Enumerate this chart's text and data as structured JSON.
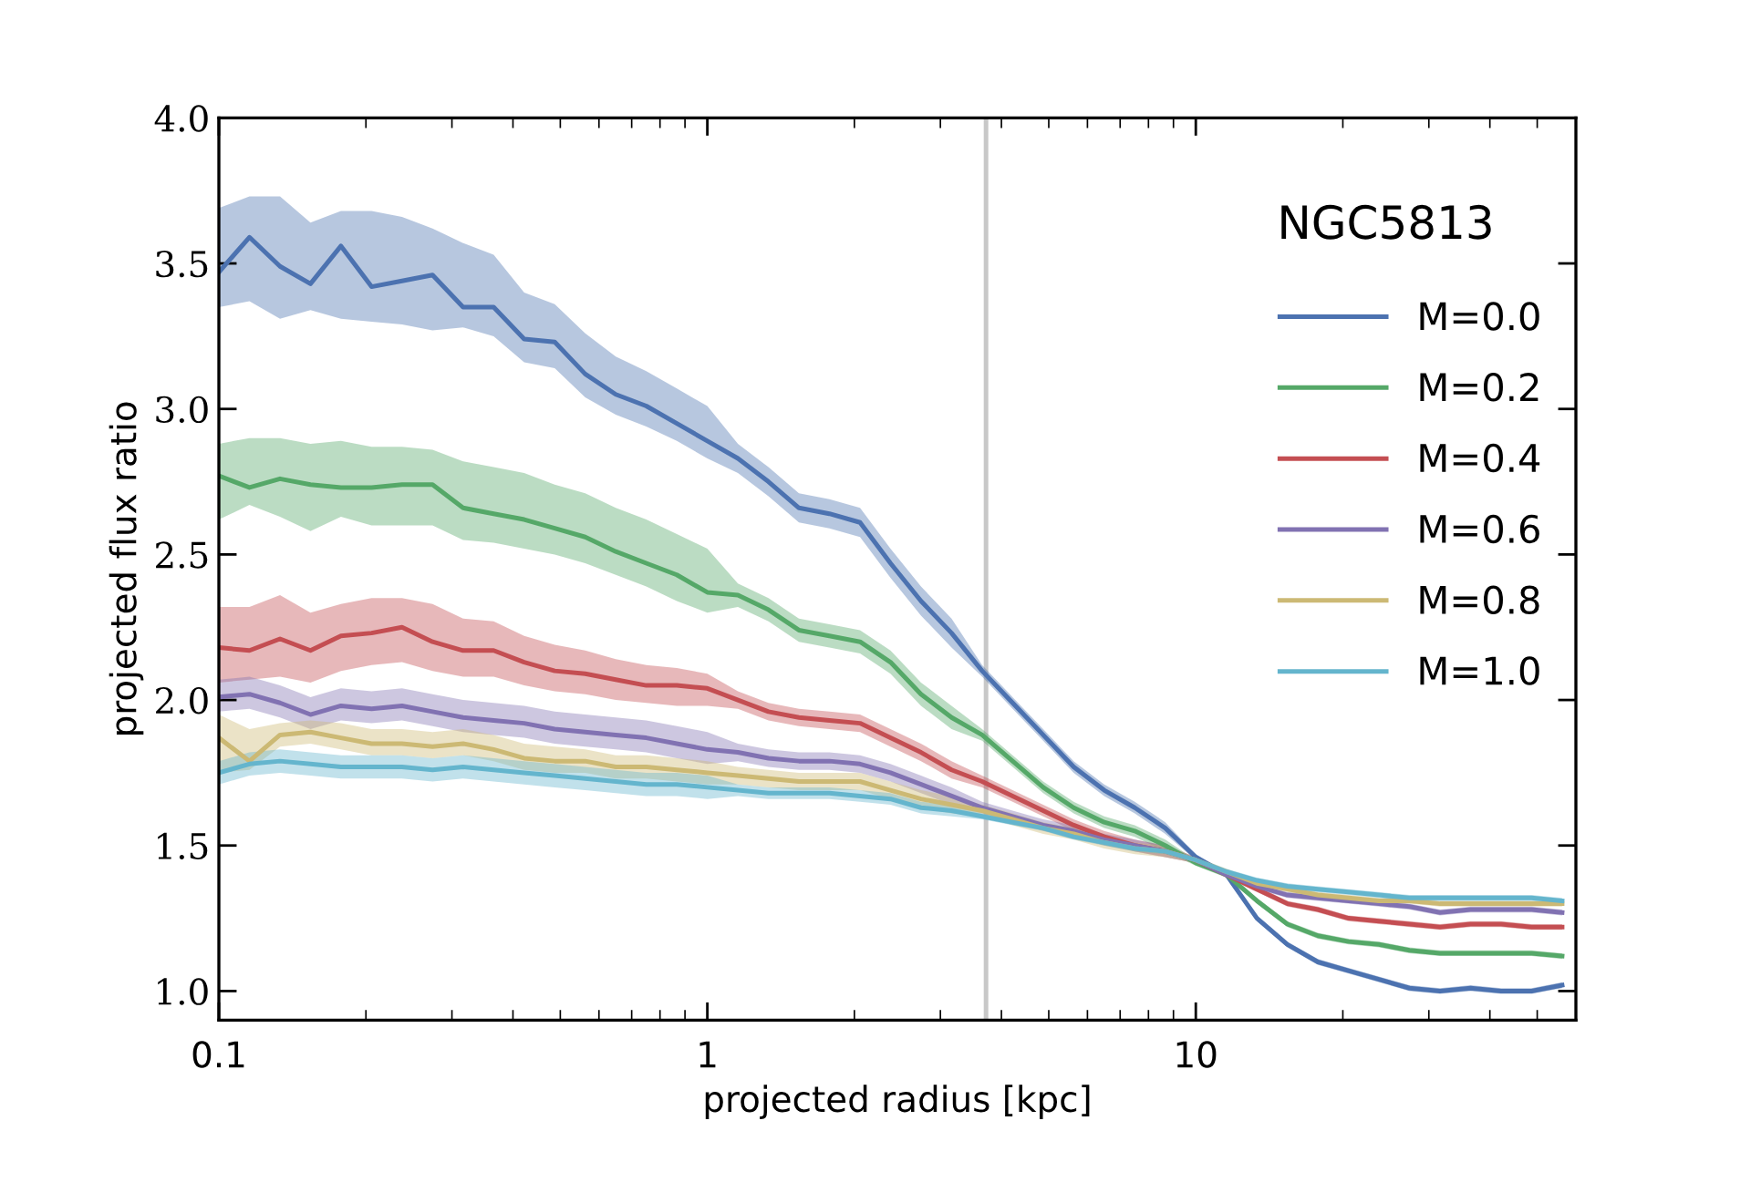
{
  "chart_data": {
    "type": "line",
    "xlabel": "projected radius [kpc]",
    "ylabel": "projected flux ratio",
    "annotations": [
      "NGC5813"
    ],
    "log": "x",
    "grid": false,
    "legend": "right",
    "line_style": "solid",
    "marker": "none",
    "xlim": [
      0.1,
      60
    ],
    "xticks": [
      0.1,
      1,
      10
    ],
    "ylim": [
      0.9,
      4.0
    ],
    "yticks": [
      {
        "value": 1.0,
        "label": "1.0"
      },
      {
        "value": 1.5,
        "label": "1.5"
      },
      {
        "value": 2.0,
        "label": "2.0"
      },
      {
        "value": 2.5,
        "label": "2.5"
      },
      {
        "value": 3.0,
        "label": "3.0"
      },
      {
        "value": 3.5,
        "label": "3.5"
      },
      {
        "value": 4.0,
        "label": "4.0"
      }
    ],
    "ref_lines": [
      {
        "axis": "x",
        "value": 3.72,
        "label": null,
        "color": "#c8c8c8"
      }
    ],
    "x": [
      0.1,
      0.1155,
      0.1334,
      0.154,
      0.1778,
      0.2054,
      0.2371,
      0.2738,
      0.3162,
      0.3652,
      0.4217,
      0.487,
      0.5623,
      0.6494,
      0.7499,
      0.866,
      1.0,
      1.155,
      1.334,
      1.54,
      1.778,
      2.054,
      2.371,
      2.738,
      3.162,
      3.652,
      4.217,
      4.87,
      5.623,
      6.494,
      7.499,
      8.66,
      10.0,
      11.55,
      13.34,
      15.4,
      17.78,
      20.54,
      23.71,
      27.38,
      31.62,
      36.52,
      42.17,
      48.7,
      56.23
    ],
    "series": [
      {
        "name": "M=0.0",
        "color": "#4c72b0",
        "values": [
          3.47,
          3.59,
          3.49,
          3.43,
          3.56,
          3.42,
          3.44,
          3.46,
          3.35,
          3.35,
          3.24,
          3.23,
          3.12,
          3.05,
          3.01,
          2.95,
          2.89,
          2.83,
          2.75,
          2.66,
          2.64,
          2.61,
          2.47,
          2.34,
          2.23,
          2.1,
          1.99,
          1.88,
          1.77,
          1.69,
          1.63,
          1.56,
          1.46,
          1.4,
          1.25,
          1.16,
          1.1,
          1.07,
          1.04,
          1.01,
          1.0,
          1.01,
          1.0,
          1.0,
          1.02
        ],
        "upper": [
          3.69,
          3.73,
          3.73,
          3.64,
          3.68,
          3.68,
          3.66,
          3.62,
          3.57,
          3.53,
          3.4,
          3.36,
          3.26,
          3.18,
          3.13,
          3.07,
          3.01,
          2.88,
          2.8,
          2.71,
          2.69,
          2.66,
          2.52,
          2.39,
          2.28,
          2.12,
          2.01,
          1.9,
          1.79,
          1.71,
          1.65,
          1.58,
          1.47,
          1.41,
          1.26,
          1.17,
          1.11,
          1.08,
          1.05,
          1.02,
          1.01,
          1.02,
          1.01,
          1.01,
          1.03
        ],
        "lower": [
          3.35,
          3.37,
          3.31,
          3.34,
          3.31,
          3.3,
          3.29,
          3.27,
          3.28,
          3.25,
          3.16,
          3.14,
          3.04,
          2.98,
          2.94,
          2.89,
          2.83,
          2.78,
          2.7,
          2.61,
          2.59,
          2.56,
          2.42,
          2.29,
          2.18,
          2.08,
          1.97,
          1.86,
          1.75,
          1.67,
          1.61,
          1.54,
          1.45,
          1.39,
          1.24,
          1.15,
          1.09,
          1.06,
          1.03,
          1.0,
          0.99,
          1.0,
          0.99,
          0.99,
          1.01
        ]
      },
      {
        "name": "M=0.2",
        "color": "#55a868",
        "values": [
          2.77,
          2.73,
          2.76,
          2.74,
          2.73,
          2.73,
          2.74,
          2.74,
          2.66,
          2.64,
          2.62,
          2.59,
          2.56,
          2.51,
          2.47,
          2.43,
          2.37,
          2.36,
          2.31,
          2.24,
          2.22,
          2.2,
          2.13,
          2.02,
          1.94,
          1.88,
          1.79,
          1.7,
          1.63,
          1.58,
          1.55,
          1.5,
          1.44,
          1.4,
          1.31,
          1.23,
          1.19,
          1.17,
          1.16,
          1.14,
          1.13,
          1.13,
          1.13,
          1.13,
          1.12
        ],
        "upper": [
          2.88,
          2.9,
          2.9,
          2.88,
          2.89,
          2.87,
          2.87,
          2.86,
          2.82,
          2.8,
          2.78,
          2.74,
          2.71,
          2.66,
          2.62,
          2.57,
          2.52,
          2.4,
          2.35,
          2.28,
          2.26,
          2.24,
          2.17,
          2.06,
          1.98,
          1.9,
          1.81,
          1.72,
          1.65,
          1.6,
          1.57,
          1.52,
          1.45,
          1.41,
          1.32,
          1.24,
          1.2,
          1.18,
          1.17,
          1.15,
          1.14,
          1.14,
          1.14,
          1.14,
          1.13
        ],
        "lower": [
          2.62,
          2.67,
          2.63,
          2.58,
          2.63,
          2.6,
          2.6,
          2.6,
          2.55,
          2.54,
          2.52,
          2.5,
          2.47,
          2.43,
          2.39,
          2.34,
          2.3,
          2.32,
          2.27,
          2.2,
          2.18,
          2.16,
          2.09,
          1.98,
          1.9,
          1.86,
          1.77,
          1.68,
          1.61,
          1.56,
          1.53,
          1.48,
          1.43,
          1.39,
          1.3,
          1.22,
          1.18,
          1.16,
          1.15,
          1.13,
          1.12,
          1.12,
          1.12,
          1.12,
          1.11
        ]
      },
      {
        "name": "M=0.4",
        "color": "#c44e52",
        "values": [
          2.18,
          2.17,
          2.21,
          2.17,
          2.22,
          2.23,
          2.25,
          2.2,
          2.17,
          2.17,
          2.13,
          2.1,
          2.09,
          2.07,
          2.05,
          2.05,
          2.04,
          2.0,
          1.96,
          1.94,
          1.93,
          1.92,
          1.87,
          1.82,
          1.76,
          1.72,
          1.67,
          1.62,
          1.57,
          1.53,
          1.5,
          1.48,
          1.45,
          1.4,
          1.35,
          1.3,
          1.28,
          1.25,
          1.24,
          1.23,
          1.22,
          1.23,
          1.23,
          1.22,
          1.22
        ],
        "upper": [
          2.32,
          2.32,
          2.36,
          2.3,
          2.33,
          2.35,
          2.35,
          2.33,
          2.28,
          2.27,
          2.22,
          2.19,
          2.17,
          2.14,
          2.12,
          2.11,
          2.09,
          2.03,
          1.99,
          1.97,
          1.96,
          1.95,
          1.9,
          1.85,
          1.79,
          1.74,
          1.69,
          1.64,
          1.59,
          1.55,
          1.52,
          1.5,
          1.46,
          1.41,
          1.36,
          1.31,
          1.29,
          1.26,
          1.25,
          1.24,
          1.23,
          1.24,
          1.24,
          1.23,
          1.23
        ],
        "lower": [
          2.06,
          2.07,
          2.08,
          2.06,
          2.1,
          2.12,
          2.13,
          2.1,
          2.08,
          2.08,
          2.05,
          2.03,
          2.02,
          2.0,
          1.99,
          1.98,
          1.98,
          1.97,
          1.93,
          1.91,
          1.9,
          1.89,
          1.84,
          1.79,
          1.73,
          1.7,
          1.65,
          1.6,
          1.55,
          1.51,
          1.48,
          1.46,
          1.44,
          1.39,
          1.34,
          1.29,
          1.27,
          1.24,
          1.23,
          1.22,
          1.21,
          1.22,
          1.22,
          1.21,
          1.21
        ]
      },
      {
        "name": "M=0.6",
        "color": "#8172b2",
        "values": [
          2.01,
          2.02,
          1.99,
          1.95,
          1.98,
          1.97,
          1.98,
          1.96,
          1.94,
          1.93,
          1.92,
          1.9,
          1.89,
          1.88,
          1.87,
          1.85,
          1.83,
          1.82,
          1.8,
          1.79,
          1.79,
          1.78,
          1.75,
          1.71,
          1.67,
          1.63,
          1.6,
          1.57,
          1.55,
          1.52,
          1.5,
          1.48,
          1.45,
          1.4,
          1.36,
          1.33,
          1.32,
          1.31,
          1.3,
          1.29,
          1.27,
          1.28,
          1.28,
          1.28,
          1.27
        ],
        "upper": [
          2.07,
          2.08,
          2.05,
          2.01,
          2.04,
          2.03,
          2.04,
          2.02,
          2.0,
          1.99,
          1.98,
          1.96,
          1.95,
          1.94,
          1.93,
          1.91,
          1.89,
          1.85,
          1.83,
          1.82,
          1.82,
          1.81,
          1.78,
          1.74,
          1.7,
          1.65,
          1.62,
          1.59,
          1.57,
          1.54,
          1.52,
          1.5,
          1.46,
          1.41,
          1.37,
          1.34,
          1.33,
          1.32,
          1.31,
          1.3,
          1.28,
          1.29,
          1.29,
          1.29,
          1.28
        ],
        "lower": [
          1.96,
          1.97,
          1.94,
          1.9,
          1.93,
          1.92,
          1.93,
          1.91,
          1.89,
          1.88,
          1.87,
          1.85,
          1.84,
          1.83,
          1.82,
          1.8,
          1.78,
          1.79,
          1.77,
          1.76,
          1.76,
          1.75,
          1.72,
          1.68,
          1.64,
          1.61,
          1.58,
          1.55,
          1.53,
          1.5,
          1.48,
          1.46,
          1.44,
          1.39,
          1.35,
          1.32,
          1.31,
          1.3,
          1.29,
          1.28,
          1.26,
          1.27,
          1.27,
          1.27,
          1.26
        ]
      },
      {
        "name": "M=0.8",
        "color": "#ccb974",
        "values": [
          1.87,
          1.79,
          1.88,
          1.89,
          1.87,
          1.85,
          1.85,
          1.84,
          1.85,
          1.83,
          1.8,
          1.79,
          1.79,
          1.77,
          1.77,
          1.76,
          1.75,
          1.74,
          1.73,
          1.72,
          1.72,
          1.72,
          1.69,
          1.66,
          1.64,
          1.62,
          1.59,
          1.56,
          1.54,
          1.51,
          1.49,
          1.48,
          1.45,
          1.41,
          1.37,
          1.35,
          1.33,
          1.32,
          1.31,
          1.31,
          1.3,
          1.3,
          1.3,
          1.3,
          1.3
        ],
        "upper": [
          1.95,
          1.9,
          1.92,
          1.93,
          1.92,
          1.9,
          1.9,
          1.89,
          1.9,
          1.88,
          1.85,
          1.84,
          1.83,
          1.81,
          1.81,
          1.8,
          1.79,
          1.77,
          1.76,
          1.75,
          1.75,
          1.75,
          1.72,
          1.69,
          1.67,
          1.64,
          1.61,
          1.58,
          1.56,
          1.53,
          1.51,
          1.5,
          1.46,
          1.42,
          1.38,
          1.36,
          1.34,
          1.33,
          1.32,
          1.32,
          1.31,
          1.31,
          1.31,
          1.31,
          1.31
        ],
        "lower": [
          1.75,
          1.76,
          1.84,
          1.85,
          1.83,
          1.81,
          1.81,
          1.8,
          1.81,
          1.79,
          1.76,
          1.75,
          1.75,
          1.73,
          1.73,
          1.72,
          1.71,
          1.71,
          1.7,
          1.69,
          1.69,
          1.69,
          1.66,
          1.63,
          1.61,
          1.6,
          1.57,
          1.54,
          1.52,
          1.49,
          1.47,
          1.46,
          1.44,
          1.4,
          1.36,
          1.34,
          1.32,
          1.31,
          1.3,
          1.3,
          1.29,
          1.29,
          1.29,
          1.29,
          1.29
        ]
      },
      {
        "name": "M=1.0",
        "color": "#64b5cd",
        "values": [
          1.75,
          1.78,
          1.79,
          1.78,
          1.77,
          1.77,
          1.77,
          1.76,
          1.77,
          1.76,
          1.75,
          1.74,
          1.73,
          1.72,
          1.71,
          1.71,
          1.7,
          1.69,
          1.68,
          1.68,
          1.68,
          1.67,
          1.66,
          1.63,
          1.62,
          1.6,
          1.58,
          1.56,
          1.53,
          1.51,
          1.49,
          1.48,
          1.45,
          1.41,
          1.38,
          1.36,
          1.35,
          1.34,
          1.33,
          1.32,
          1.32,
          1.32,
          1.32,
          1.32,
          1.31
        ],
        "upper": [
          1.79,
          1.82,
          1.83,
          1.82,
          1.81,
          1.81,
          1.81,
          1.8,
          1.81,
          1.8,
          1.79,
          1.78,
          1.77,
          1.76,
          1.75,
          1.75,
          1.74,
          1.71,
          1.7,
          1.7,
          1.7,
          1.69,
          1.68,
          1.65,
          1.64,
          1.61,
          1.59,
          1.57,
          1.54,
          1.52,
          1.5,
          1.49,
          1.46,
          1.42,
          1.39,
          1.37,
          1.36,
          1.35,
          1.34,
          1.33,
          1.33,
          1.33,
          1.33,
          1.33,
          1.32
        ],
        "lower": [
          1.71,
          1.74,
          1.75,
          1.74,
          1.73,
          1.73,
          1.73,
          1.72,
          1.73,
          1.72,
          1.71,
          1.7,
          1.69,
          1.68,
          1.67,
          1.67,
          1.66,
          1.67,
          1.66,
          1.66,
          1.66,
          1.65,
          1.64,
          1.61,
          1.6,
          1.59,
          1.57,
          1.55,
          1.52,
          1.5,
          1.48,
          1.47,
          1.44,
          1.4,
          1.37,
          1.35,
          1.34,
          1.33,
          1.32,
          1.31,
          1.31,
          1.31,
          1.31,
          1.31,
          1.3
        ]
      }
    ]
  }
}
